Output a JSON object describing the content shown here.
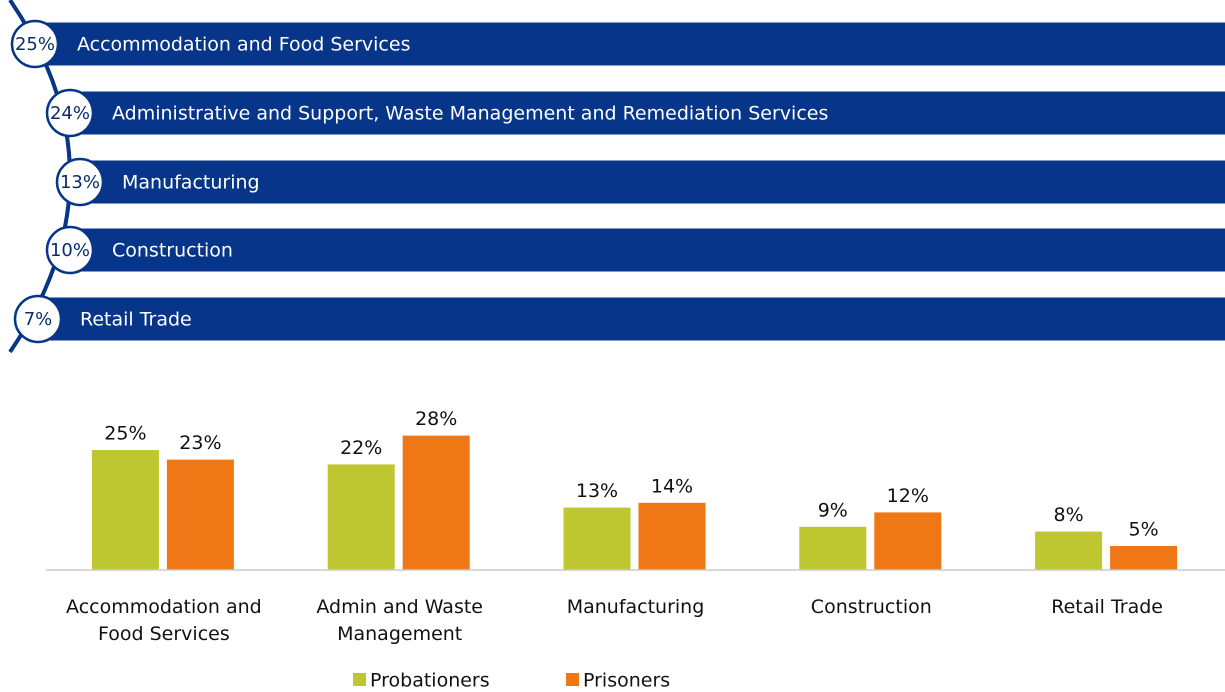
{
  "chart_data": [
    {
      "type": "ranking",
      "categories": [
        "Accommodation and Food Services",
        "Administrative and Support, Waste Management and Remediation Services",
        "Manufacturing",
        "Construction",
        "Retail Trade"
      ],
      "values": [
        25,
        24,
        13,
        10,
        7
      ],
      "value_labels": [
        "25%",
        "24%",
        "13%",
        "10%",
        "7%"
      ],
      "color": "#073589"
    },
    {
      "type": "bar",
      "categories": [
        "Accommodation and Food Services",
        "Admin and Waste Management",
        "Manufacturing",
        "Construction",
        "Retail Trade"
      ],
      "series": [
        {
          "name": "Probationers",
          "color": "#bec730",
          "values": [
            25,
            22,
            13,
            9,
            8
          ],
          "value_labels": [
            "25%",
            "22%",
            "13%",
            "9%",
            "8%"
          ]
        },
        {
          "name": "Prisoners",
          "color": "#f07715",
          "values": [
            23,
            28,
            14,
            12,
            5
          ],
          "value_labels": [
            "23%",
            "28%",
            "14%",
            "12%",
            "5%"
          ]
        }
      ],
      "ylim": [
        0,
        30
      ]
    }
  ]
}
